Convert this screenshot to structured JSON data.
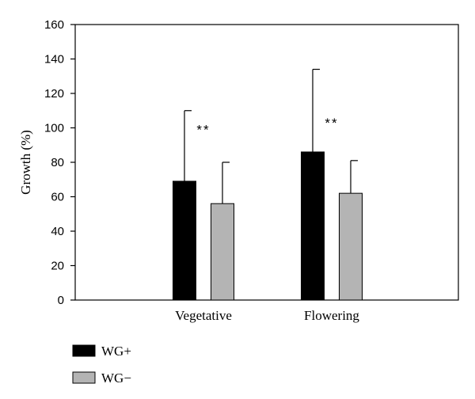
{
  "chart_data": {
    "type": "bar",
    "title": "",
    "xlabel": "",
    "ylabel": "Growth (%)",
    "ylim": [
      0,
      160
    ],
    "yticks": [
      0,
      20,
      40,
      60,
      80,
      100,
      120,
      140,
      160
    ],
    "grid": false,
    "legend_position": "bottom-left",
    "categories": [
      "Vegetative",
      "Flowering"
    ],
    "series": [
      {
        "name": "WG+",
        "color": "#000000",
        "values": [
          69,
          86
        ],
        "error_upper": [
          110,
          134
        ]
      },
      {
        "name": "WG−",
        "color": "#b4b4b4",
        "values": [
          56,
          62
        ],
        "error_upper": [
          80,
          81
        ]
      }
    ],
    "annotations": [
      {
        "category": "Vegetative",
        "text": "**",
        "y": 100
      },
      {
        "category": "Flowering",
        "text": "**",
        "y": 104
      }
    ]
  }
}
